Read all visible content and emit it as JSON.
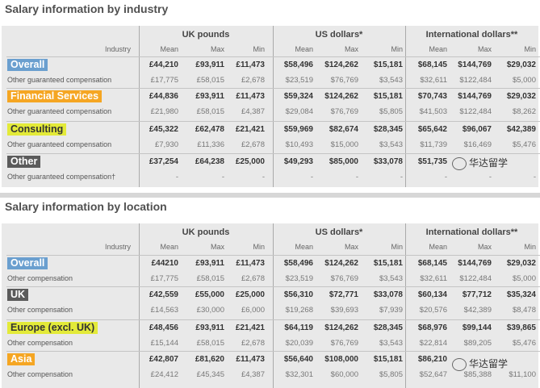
{
  "industry": {
    "title": "Salary information by industry",
    "row_header": "Industry",
    "groups": [
      "UK pounds",
      "US dollars*",
      "International dollars**"
    ],
    "subheaders": [
      "Mean",
      "Max",
      "Min"
    ],
    "rows": [
      {
        "label": "Overall",
        "color": "blue",
        "values": [
          "£44,210",
          "£93,911",
          "£11,473",
          "$58,496",
          "$124,262",
          "$15,181",
          "$68,145",
          "$144,769",
          "$29,032"
        ],
        "sub": "Other guaranteed compensation",
        "sub_values": [
          "£17,775",
          "£58,015",
          "£2,678",
          "$23,519",
          "$76,769",
          "$3,543",
          "$32,611",
          "$122,484",
          "$5,000"
        ]
      },
      {
        "label": "Financial Services",
        "color": "orange",
        "values": [
          "£44,836",
          "£93,911",
          "£11,473",
          "$59,324",
          "$124,262",
          "$15,181",
          "$70,743",
          "$144,769",
          "$29,032"
        ],
        "sub": "Other guaranteed compensation",
        "sub_values": [
          "£21,980",
          "£58,015",
          "£4,387",
          "$29,084",
          "$76,769",
          "$5,805",
          "$41,503",
          "$122,484",
          "$8,262"
        ]
      },
      {
        "label": "Consulting",
        "color": "yellow",
        "values": [
          "£45,322",
          "£62,478",
          "£21,421",
          "$59,969",
          "$82,674",
          "$28,345",
          "$65,642",
          "$96,067",
          "$42,389"
        ],
        "sub": "Other guaranteed compensation",
        "sub_values": [
          "£7,930",
          "£11,336",
          "£2,678",
          "$10,493",
          "$15,000",
          "$3,543",
          "$11,739",
          "$16,469",
          "$5,476"
        ]
      },
      {
        "label": "Other",
        "color": "dark",
        "values": [
          "£37,254",
          "£64,238",
          "£25,000",
          "$49,293",
          "$85,000",
          "$33,078",
          "$51,735",
          "",
          ""
        ],
        "sub": "Other guaranteed compensation†",
        "sub_values": [
          "-",
          "-",
          "-",
          "-",
          "-",
          "-",
          "-",
          "-",
          "-"
        ]
      }
    ]
  },
  "location": {
    "title": "Salary information by location",
    "row_header": "Industry",
    "groups": [
      "UK pounds",
      "US dollars*",
      "International dollars**"
    ],
    "subheaders": [
      "Mean",
      "Max",
      "Min"
    ],
    "rows": [
      {
        "label": "Overall",
        "color": "blue",
        "values": [
          "£44210",
          "£93,911",
          "£11,473",
          "$58,496",
          "$124,262",
          "$15,181",
          "$68,145",
          "$144,769",
          "$29,032"
        ],
        "sub": "Other compensation",
        "sub_values": [
          "£17,775",
          "£58,015",
          "£2,678",
          "$23,519",
          "$76,769",
          "$3,543",
          "$32,611",
          "$122,484",
          "$5,000"
        ]
      },
      {
        "label": "UK",
        "color": "dark",
        "values": [
          "£42,559",
          "£55,000",
          "£25,000",
          "$56,310",
          "$72,771",
          "$33,078",
          "$60,134",
          "$77,712",
          "$35,324"
        ],
        "sub": "Other compensation",
        "sub_values": [
          "£14,563",
          "£30,000",
          "£6,000",
          "$19,268",
          "$39,693",
          "$7,939",
          "$20,576",
          "$42,389",
          "$8,478"
        ]
      },
      {
        "label": "Europe (excl. UK)",
        "color": "yellow",
        "values": [
          "£48,456",
          "£93,911",
          "£21,421",
          "$64,119",
          "$124,262",
          "$28,345",
          "$68,976",
          "$99,144",
          "$39,865"
        ],
        "sub": "Other compensation",
        "sub_values": [
          "£15,144",
          "£58,015",
          "£2,678",
          "$20,039",
          "$76,769",
          "$3,543",
          "$22,814",
          "$89,205",
          "$5,476"
        ]
      },
      {
        "label": "Asia",
        "color": "orange",
        "values": [
          "£42,807",
          "£81,620",
          "£11,473",
          "$56,640",
          "$108,000",
          "$15,181",
          "$86,210",
          "",
          ""
        ],
        "sub": "Other compensation",
        "sub_values": [
          "£24,412",
          "£45,345",
          "£4,387",
          "$32,301",
          "$60,000",
          "$5,805",
          "$52,647",
          "$85,388",
          "$11,100"
        ]
      }
    ]
  },
  "watermark": {
    "text": "华达留学"
  }
}
